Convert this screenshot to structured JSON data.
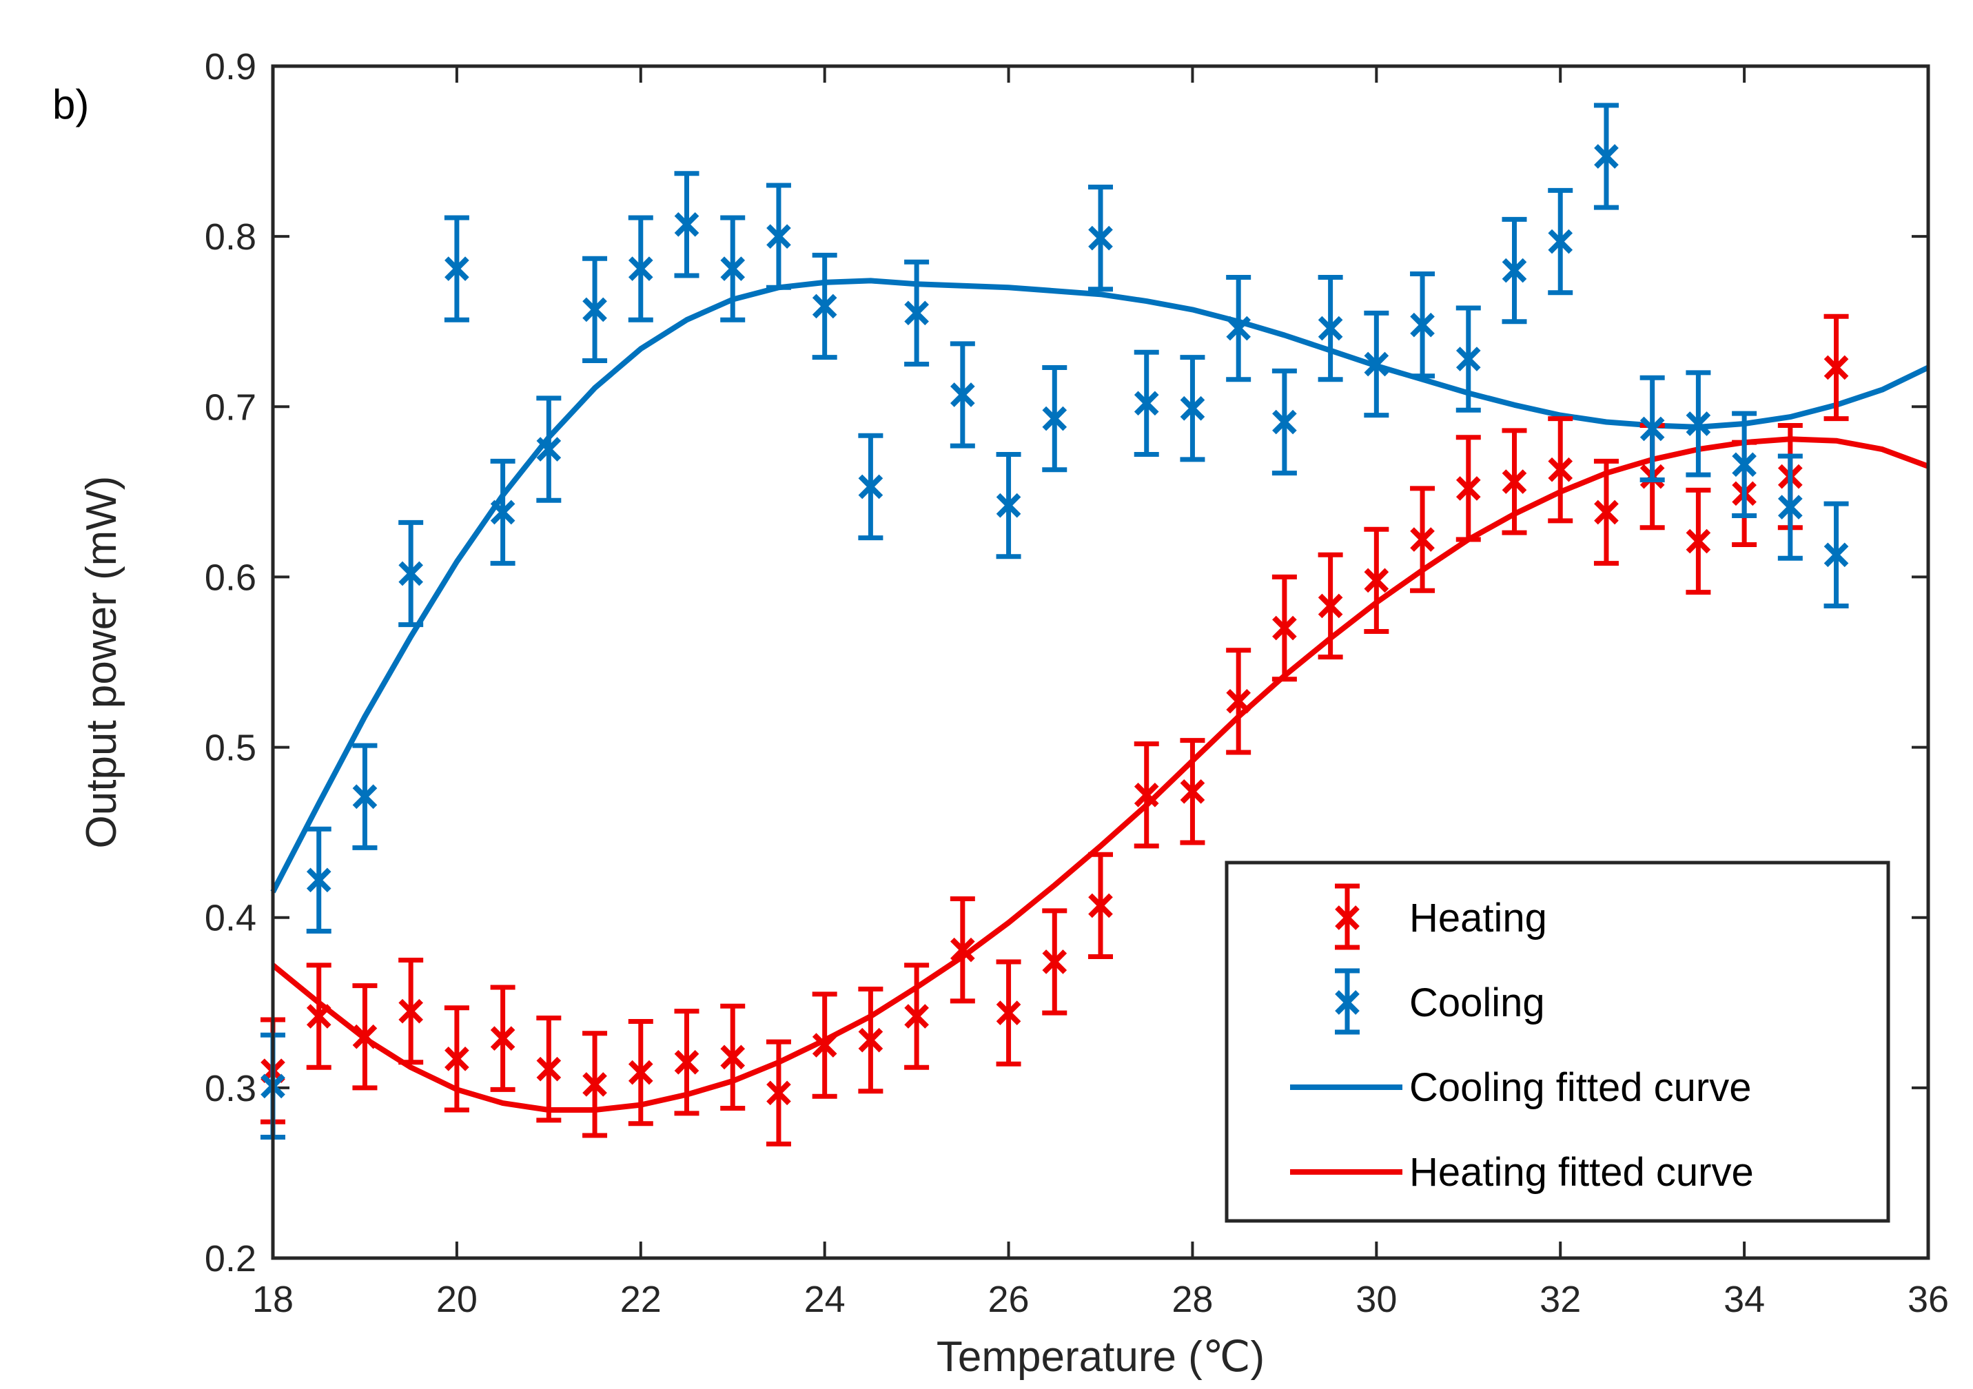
{
  "chart_data": {
    "type": "scatter",
    "panel_label": "b)",
    "xlabel": "Temperature (℃)",
    "ylabel": "Output power (mW)",
    "xlim": [
      18,
      36
    ],
    "ylim": [
      0.2,
      0.9
    ],
    "xticks": [
      18,
      20,
      22,
      24,
      26,
      28,
      30,
      32,
      34,
      36
    ],
    "yticks": [
      0.2,
      0.3,
      0.4,
      0.5,
      0.6,
      0.7,
      0.8,
      0.9
    ],
    "xtick_labels": [
      "18",
      "20",
      "22",
      "24",
      "26",
      "28",
      "30",
      "32",
      "34",
      "36"
    ],
    "ytick_labels": [
      "0.2",
      "0.3",
      "0.4",
      "0.5",
      "0.6",
      "0.7",
      "0.8",
      "0.9"
    ],
    "error_bar": 0.03,
    "legend": {
      "placement": "bottom-right",
      "entries": [
        "Heating",
        "Cooling",
        "Cooling fitted curve",
        "Heating fitted curve"
      ]
    },
    "colors": {
      "heating": "#ee0000",
      "cooling": "#0072bd",
      "axis": "#262626"
    },
    "series": [
      {
        "name": "Heating",
        "kind": "errorbar",
        "x": [
          18,
          18.5,
          19,
          19.5,
          20,
          20.5,
          21,
          21.5,
          22,
          22.5,
          23,
          23.5,
          24,
          24.5,
          25,
          25.5,
          26,
          26.5,
          27,
          27.5,
          28,
          28.5,
          29,
          29.5,
          30,
          30.5,
          31,
          31.5,
          32,
          32.5,
          33,
          33.5,
          34,
          34.5,
          35
        ],
        "y": [
          0.31,
          0.342,
          0.33,
          0.345,
          0.317,
          0.329,
          0.311,
          0.302,
          0.309,
          0.315,
          0.318,
          0.297,
          0.325,
          0.328,
          0.342,
          0.381,
          0.344,
          0.374,
          0.407,
          0.472,
          0.474,
          0.527,
          0.57,
          0.583,
          0.598,
          0.622,
          0.652,
          0.656,
          0.663,
          0.638,
          0.659,
          0.621,
          0.649,
          0.659,
          0.723
        ]
      },
      {
        "name": "Cooling",
        "kind": "errorbar",
        "x": [
          18,
          18.5,
          19,
          19.5,
          20,
          20.5,
          21,
          21.5,
          22,
          22.5,
          23,
          23.5,
          24,
          24.5,
          25,
          25.5,
          26,
          26.5,
          27,
          27.5,
          28,
          28.5,
          29,
          29.5,
          30,
          30.5,
          31,
          31.5,
          32,
          32.5,
          33,
          33.5,
          34,
          34.5,
          35
        ],
        "y": [
          0.301,
          0.422,
          0.471,
          0.602,
          0.781,
          0.638,
          0.675,
          0.757,
          0.781,
          0.807,
          0.781,
          0.8,
          0.759,
          0.653,
          0.755,
          0.707,
          0.642,
          0.693,
          0.799,
          0.702,
          0.699,
          0.746,
          0.691,
          0.746,
          0.725,
          0.748,
          0.728,
          0.78,
          0.797,
          0.847,
          0.687,
          0.69,
          0.666,
          0.641,
          0.613
        ]
      },
      {
        "name": "Cooling fitted curve",
        "kind": "line",
        "x": [
          18,
          18.5,
          19,
          19.5,
          20,
          20.5,
          21,
          21.5,
          22,
          22.5,
          23,
          23.5,
          24,
          24.5,
          25,
          25.5,
          26,
          26.5,
          27,
          27.5,
          28,
          28.5,
          29,
          29.5,
          30,
          30.5,
          31,
          31.5,
          32,
          32.5,
          33,
          33.5,
          34,
          34.5,
          35,
          35.5,
          36
        ],
        "y": [
          0.415,
          0.467,
          0.518,
          0.565,
          0.609,
          0.648,
          0.682,
          0.711,
          0.734,
          0.751,
          0.763,
          0.77,
          0.773,
          0.774,
          0.772,
          0.771,
          0.77,
          0.768,
          0.766,
          0.762,
          0.757,
          0.75,
          0.742,
          0.733,
          0.724,
          0.716,
          0.708,
          0.701,
          0.695,
          0.691,
          0.689,
          0.688,
          0.69,
          0.694,
          0.701,
          0.71,
          0.723
        ]
      },
      {
        "name": "Heating fitted curve",
        "kind": "line",
        "x": [
          18,
          18.5,
          19,
          19.5,
          20,
          20.5,
          21,
          21.5,
          22,
          22.5,
          23,
          23.5,
          24,
          24.5,
          25,
          25.5,
          26,
          26.5,
          27,
          27.5,
          28,
          28.5,
          29,
          29.5,
          30,
          30.5,
          31,
          31.5,
          32,
          32.5,
          33,
          33.5,
          34,
          34.5,
          35,
          35.5,
          36
        ],
        "y": [
          0.372,
          0.35,
          0.329,
          0.312,
          0.299,
          0.291,
          0.287,
          0.287,
          0.29,
          0.296,
          0.304,
          0.315,
          0.328,
          0.342,
          0.359,
          0.377,
          0.397,
          0.419,
          0.442,
          0.466,
          0.492,
          0.518,
          0.542,
          0.564,
          0.585,
          0.604,
          0.622,
          0.637,
          0.65,
          0.661,
          0.669,
          0.675,
          0.679,
          0.681,
          0.68,
          0.675,
          0.665
        ]
      }
    ]
  }
}
